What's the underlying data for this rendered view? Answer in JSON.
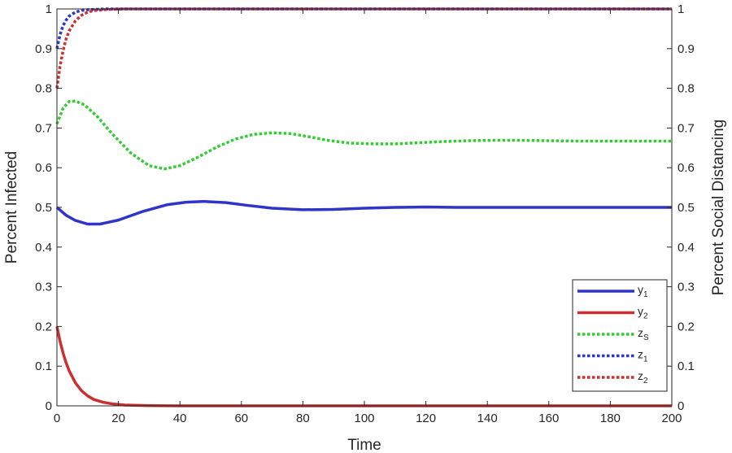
{
  "chart_data": {
    "type": "line",
    "title": "",
    "xlabel": "Time",
    "ylabel_left": "Percent Infected",
    "ylabel_right": "Percent Social Distancing",
    "xlim": [
      0,
      200
    ],
    "ylim": [
      0,
      1
    ],
    "x_ticks": [
      0,
      20,
      40,
      60,
      80,
      100,
      120,
      140,
      160,
      180,
      200
    ],
    "y_ticks": [
      0,
      0.1,
      0.2,
      0.3,
      0.4,
      0.5,
      0.6,
      0.7,
      0.8,
      0.9,
      1
    ],
    "y_tick_labels": [
      "0",
      "0.1",
      "0.2",
      "0.3",
      "0.4",
      "0.5",
      "0.6",
      "0.7",
      "0.8",
      "0.9",
      "1"
    ],
    "grid": false,
    "legend_position": "bottom-right",
    "series": [
      {
        "name": "y",
        "name_sub": "1",
        "color": "#2f35c8",
        "dash": "solid",
        "x": [
          0,
          3,
          6,
          10,
          14,
          20,
          28,
          36,
          42,
          48,
          55,
          62,
          70,
          80,
          90,
          100,
          110,
          120,
          130,
          140,
          150,
          160,
          180,
          200
        ],
        "y": [
          0.5,
          0.48,
          0.467,
          0.458,
          0.458,
          0.468,
          0.49,
          0.507,
          0.513,
          0.515,
          0.512,
          0.505,
          0.498,
          0.494,
          0.495,
          0.498,
          0.5,
          0.501,
          0.5,
          0.5,
          0.5,
          0.5,
          0.5,
          0.5
        ]
      },
      {
        "name": "y",
        "name_sub": "2",
        "color": "#cc2f2f",
        "dash": "solid",
        "x": [
          0,
          1,
          2,
          3,
          4,
          6,
          8,
          10,
          12,
          15,
          18,
          22,
          30,
          40,
          60,
          100,
          150,
          200
        ],
        "y": [
          0.2,
          0.163,
          0.133,
          0.108,
          0.088,
          0.058,
          0.038,
          0.025,
          0.016,
          0.009,
          0.005,
          0.002,
          0.0005,
          0,
          0,
          0,
          0,
          0
        ]
      },
      {
        "name": "z",
        "name_sub": "S",
        "color": "#33cc33",
        "dash": "dotted",
        "x": [
          0,
          2,
          4,
          6,
          9,
          13,
          18,
          24,
          30,
          35,
          40,
          46,
          52,
          58,
          64,
          70,
          76,
          82,
          88,
          95,
          103,
          110,
          118,
          126,
          134,
          142,
          150,
          160,
          170,
          180,
          190,
          200
        ],
        "y": [
          0.71,
          0.75,
          0.767,
          0.768,
          0.758,
          0.73,
          0.685,
          0.637,
          0.605,
          0.597,
          0.605,
          0.627,
          0.652,
          0.672,
          0.684,
          0.688,
          0.686,
          0.678,
          0.669,
          0.662,
          0.66,
          0.66,
          0.663,
          0.666,
          0.668,
          0.669,
          0.669,
          0.668,
          0.667,
          0.667,
          0.667,
          0.667
        ]
      },
      {
        "name": "z",
        "name_sub": "1",
        "color": "#2f35c8",
        "dash": "dotted",
        "x": [
          0,
          1,
          2,
          3,
          4,
          6,
          8,
          10,
          13,
          16,
          20,
          30,
          60,
          100,
          150,
          200
        ],
        "y": [
          0.9,
          0.935,
          0.958,
          0.972,
          0.982,
          0.992,
          0.996,
          0.998,
          0.999,
          1,
          1,
          1,
          1,
          1,
          1,
          1
        ]
      },
      {
        "name": "z",
        "name_sub": "2",
        "color": "#cc2f2f",
        "dash": "dotted",
        "x": [
          0,
          1,
          2,
          3,
          4,
          6,
          8,
          10,
          12,
          15,
          18,
          22,
          30,
          60,
          100,
          150,
          200
        ],
        "y": [
          0.8,
          0.855,
          0.895,
          0.925,
          0.945,
          0.97,
          0.984,
          0.992,
          0.996,
          0.998,
          0.999,
          1,
          1,
          1,
          1,
          1,
          1
        ]
      }
    ]
  }
}
